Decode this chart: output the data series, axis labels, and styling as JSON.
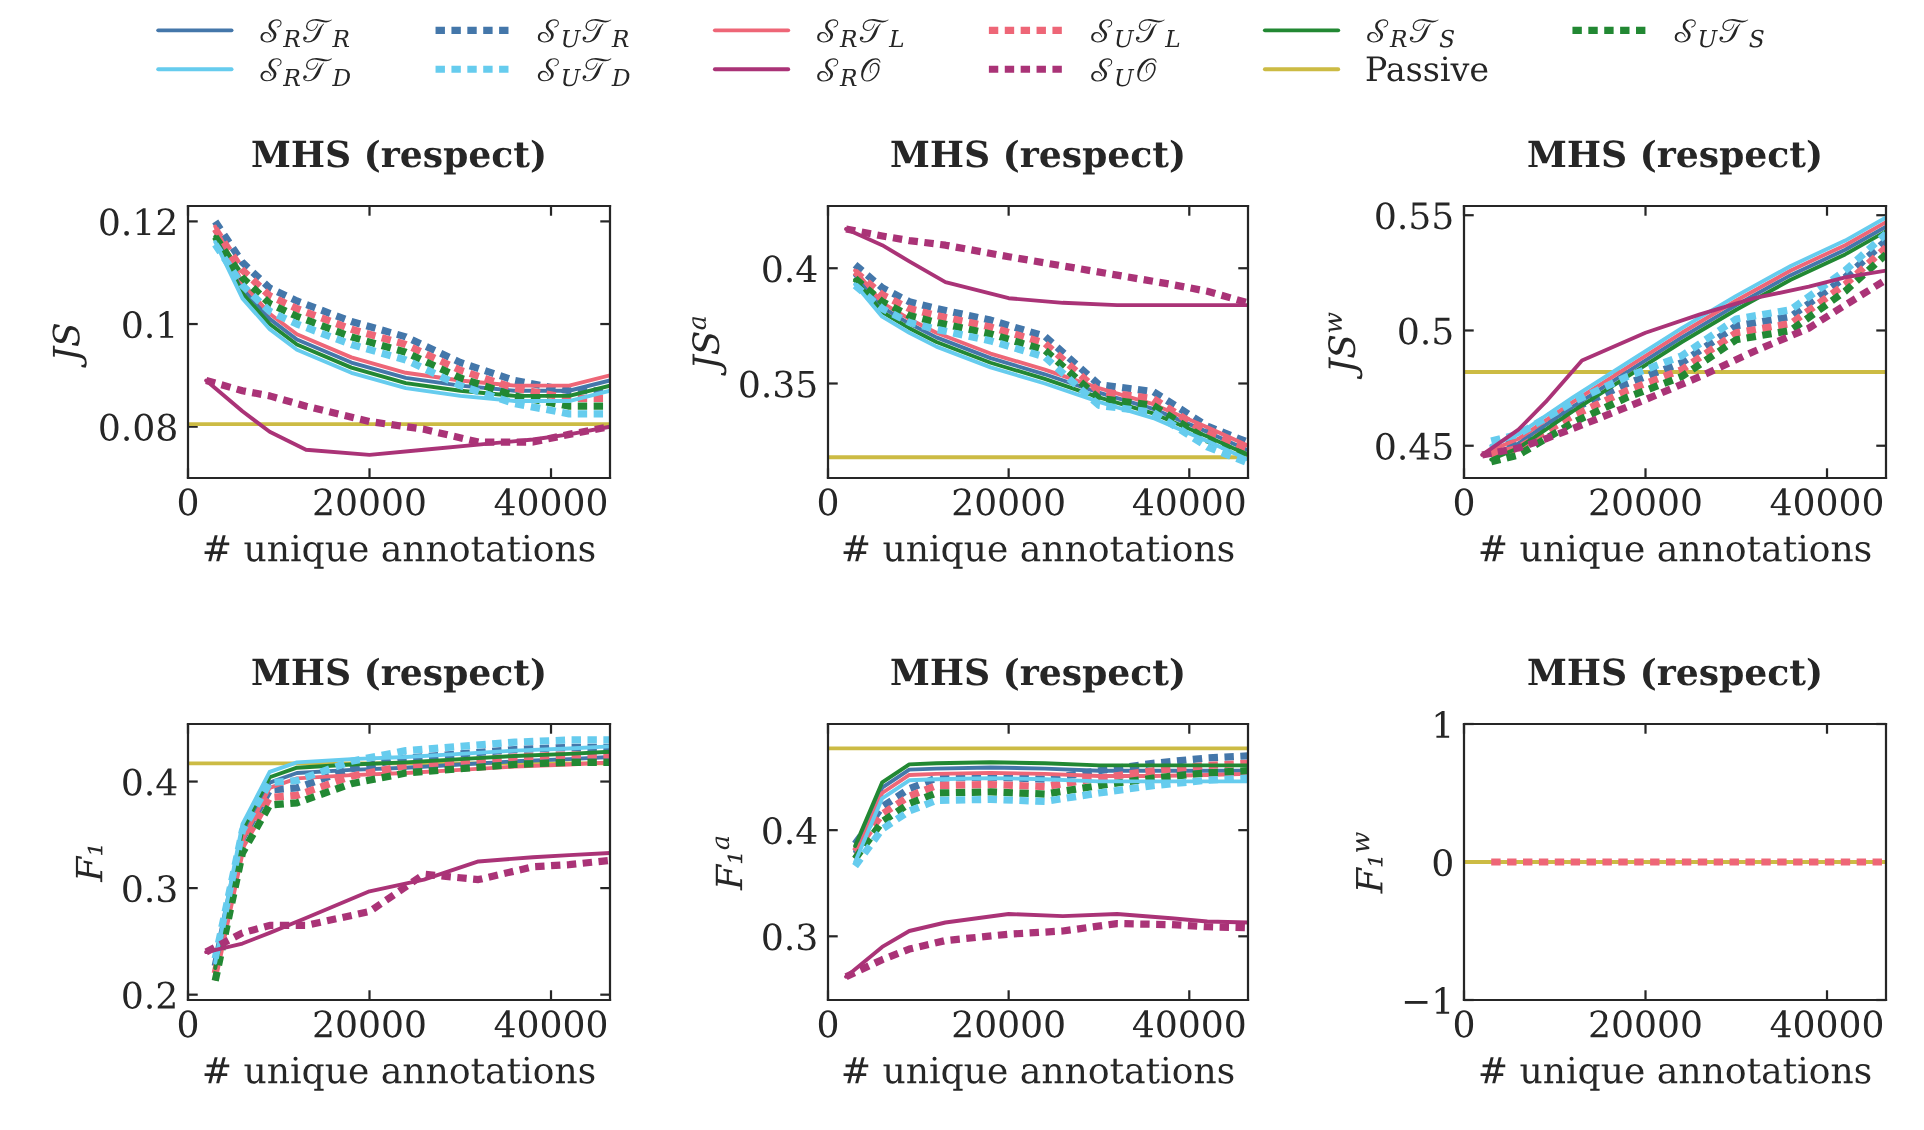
{
  "chart_data": [
    {
      "type": "line",
      "title": "MHS (respect)",
      "xlabel": "# unique annotations",
      "ylabel": "JS",
      "legend": "top",
      "xlim": [
        0,
        46500
      ],
      "xticks": [
        0,
        20000,
        40000
      ],
      "ylim": [
        0.07,
        0.123
      ],
      "yticks": [
        0.08,
        0.1,
        0.12
      ],
      "x": [
        3000,
        6000,
        9000,
        12000,
        18000,
        24000,
        30000,
        36000,
        42000,
        46500
      ],
      "series": [
        {
          "name": "𝒮$_{R}$𝒯$_{R}$",
          "color": "#4477aa",
          "values": [
            0.118,
            0.107,
            0.101,
            0.097,
            0.0925,
            0.0895,
            0.088,
            0.087,
            0.087,
            0.089
          ]
        },
        {
          "name": "𝒮$_{U}$𝒯$_{R}$",
          "color": "#4477aa",
          "line_style": "dashed",
          "values": [
            0.12,
            0.112,
            0.107,
            0.1045,
            0.1005,
            0.0975,
            0.0925,
            0.089,
            0.087,
            0.087
          ]
        },
        {
          "name": "𝒮$_{R}$𝒯$_{L}$",
          "color": "#ee6677",
          "values": [
            0.119,
            0.108,
            0.102,
            0.098,
            0.0935,
            0.0905,
            0.089,
            0.088,
            0.088,
            0.09
          ]
        },
        {
          "name": "𝒮$_{U}$𝒯$_{L}$",
          "color": "#ee6677",
          "line_style": "dashed",
          "values": [
            0.1185,
            0.1105,
            0.1055,
            0.103,
            0.099,
            0.096,
            0.091,
            0.0875,
            0.0855,
            0.0855
          ]
        },
        {
          "name": "𝒮$_{R}$𝒯$_{S}$",
          "color": "#228833",
          "values": [
            0.117,
            0.106,
            0.1,
            0.096,
            0.0915,
            0.0885,
            0.087,
            0.086,
            0.086,
            0.088
          ]
        },
        {
          "name": "𝒮$_{U}$𝒯$_{S}$",
          "color": "#228833",
          "line_style": "dashed",
          "values": [
            0.117,
            0.109,
            0.104,
            0.1015,
            0.0975,
            0.0945,
            0.0895,
            0.086,
            0.084,
            0.084
          ]
        },
        {
          "name": "𝒮$_{R}$𝒯$_{D}$",
          "color": "#66ccee",
          "values": [
            0.116,
            0.105,
            0.099,
            0.095,
            0.0905,
            0.0875,
            0.086,
            0.085,
            0.085,
            0.087
          ]
        },
        {
          "name": "𝒮$_{U}$𝒯$_{D}$",
          "color": "#66ccee",
          "line_style": "dashed",
          "values": [
            0.1155,
            0.1075,
            0.1025,
            0.1,
            0.096,
            0.093,
            0.088,
            0.0845,
            0.0825,
            0.0825
          ]
        },
        {
          "name": "𝒮$_{R}$𝒪",
          "color": "#aa3377",
          "x": [
            2000,
            6000,
            9000,
            13000,
            20000,
            26000,
            32000,
            38000,
            42000,
            46500
          ],
          "values": [
            0.089,
            0.083,
            0.079,
            0.0755,
            0.0745,
            0.0755,
            0.0765,
            0.0775,
            0.0785,
            0.08
          ]
        },
        {
          "name": "𝒮$_{U}$𝒪",
          "color": "#aa3377",
          "line_style": "dashed",
          "x": [
            2000,
            6000,
            9000,
            13000,
            20000,
            26000,
            32000,
            38000,
            42000,
            46500
          ],
          "values": [
            0.089,
            0.087,
            0.086,
            0.084,
            0.081,
            0.0795,
            0.077,
            0.077,
            0.0785,
            0.08
          ]
        }
      ],
      "ref_lines": [
        {
          "axis": "y",
          "value": 0.0805,
          "label": "Passive",
          "color": "#ccbb44"
        }
      ]
    },
    {
      "type": "line",
      "title": "MHS (respect)",
      "xlabel": "# unique annotations",
      "ylabel": "JS$^{a}$",
      "xlim": [
        0,
        46500
      ],
      "xticks": [
        0,
        20000,
        40000
      ],
      "ylim": [
        0.309,
        0.427
      ],
      "yticks": [
        0.35,
        0.4
      ],
      "x": [
        3000,
        6000,
        9000,
        12000,
        18000,
        24000,
        30000,
        36000,
        42000,
        46500
      ],
      "series": [
        {
          "color": "#4477aa",
          "values": [
            0.397,
            0.383,
            0.376,
            0.37,
            0.361,
            0.354,
            0.346,
            0.339,
            0.329,
            0.321
          ]
        },
        {
          "color": "#4477aa",
          "line_style": "dashed",
          "values": [
            0.4015,
            0.3915,
            0.3855,
            0.3825,
            0.3775,
            0.3705,
            0.3495,
            0.3465,
            0.3315,
            0.3245
          ]
        },
        {
          "color": "#ee6677",
          "values": [
            0.399,
            0.385,
            0.378,
            0.372,
            0.363,
            0.356,
            0.348,
            0.341,
            0.331,
            0.323
          ]
        },
        {
          "color": "#ee6677",
          "line_style": "dashed",
          "values": [
            0.3985,
            0.3885,
            0.3825,
            0.3795,
            0.3745,
            0.3675,
            0.3465,
            0.3435,
            0.3285,
            0.3215
          ]
        },
        {
          "color": "#228833",
          "values": [
            0.395,
            0.381,
            0.374,
            0.368,
            0.359,
            0.352,
            0.344,
            0.337,
            0.327,
            0.319
          ]
        },
        {
          "color": "#228833",
          "line_style": "dashed",
          "values": [
            0.3955,
            0.3855,
            0.3795,
            0.3765,
            0.3715,
            0.3645,
            0.3435,
            0.3405,
            0.3255,
            0.3185
          ]
        },
        {
          "color": "#66ccee",
          "values": [
            0.393,
            0.379,
            0.372,
            0.366,
            0.357,
            0.35,
            0.342,
            0.335,
            0.325,
            0.317
          ]
        },
        {
          "color": "#66ccee",
          "line_style": "dashed",
          "values": [
            0.3925,
            0.3825,
            0.3765,
            0.3735,
            0.3685,
            0.3615,
            0.3405,
            0.3375,
            0.3225,
            0.3155
          ]
        },
        {
          "color": "#aa3377",
          "x": [
            2000,
            6000,
            9000,
            13000,
            20000,
            26000,
            32000,
            38000,
            42000,
            46500
          ],
          "values": [
            0.417,
            0.41,
            0.403,
            0.394,
            0.387,
            0.385,
            0.384,
            0.384,
            0.384,
            0.384
          ]
        },
        {
          "color": "#aa3377",
          "line_style": "dashed",
          "x": [
            2000,
            6000,
            9000,
            13000,
            20000,
            26000,
            32000,
            38000,
            42000,
            46500
          ],
          "values": [
            0.417,
            0.414,
            0.412,
            0.41,
            0.405,
            0.401,
            0.397,
            0.393,
            0.39,
            0.385
          ]
        }
      ],
      "ref_lines": [
        {
          "axis": "y",
          "value": 0.318,
          "color": "#ccbb44"
        }
      ]
    },
    {
      "type": "line",
      "title": "MHS (respect)",
      "xlabel": "# unique annotations",
      "ylabel": "JS$^{w}$",
      "xlim": [
        0,
        46500
      ],
      "xticks": [
        0,
        20000,
        40000
      ],
      "ylim": [
        0.436,
        0.554
      ],
      "yticks": [
        0.45,
        0.5,
        0.55
      ],
      "x": [
        3000,
        6000,
        9000,
        12000,
        18000,
        24000,
        30000,
        36000,
        42000,
        46500
      ],
      "series": [
        {
          "color": "#4477aa",
          "values": [
            0.446,
            0.451,
            0.459,
            0.467,
            0.482,
            0.497,
            0.511,
            0.524,
            0.535,
            0.545
          ]
        },
        {
          "color": "#4477aa",
          "line_style": "dashed",
          "values": [
            0.449,
            0.452,
            0.459,
            0.466,
            0.477,
            0.486,
            0.502,
            0.506,
            0.523,
            0.539
          ]
        },
        {
          "color": "#ee6677",
          "values": [
            0.448,
            0.453,
            0.461,
            0.469,
            0.484,
            0.499,
            0.513,
            0.526,
            0.537,
            0.547
          ]
        },
        {
          "color": "#ee6677",
          "line_style": "dashed",
          "values": [
            0.446,
            0.449,
            0.456,
            0.463,
            0.474,
            0.483,
            0.499,
            0.503,
            0.52,
            0.536
          ]
        },
        {
          "color": "#228833",
          "values": [
            0.444,
            0.449,
            0.457,
            0.465,
            0.48,
            0.495,
            0.509,
            0.522,
            0.533,
            0.543
          ]
        },
        {
          "color": "#228833",
          "line_style": "dashed",
          "values": [
            0.443,
            0.446,
            0.453,
            0.46,
            0.471,
            0.48,
            0.496,
            0.5,
            0.517,
            0.533
          ]
        },
        {
          "color": "#66ccee",
          "values": [
            0.45,
            0.455,
            0.463,
            0.471,
            0.486,
            0.501,
            0.515,
            0.528,
            0.539,
            0.549
          ]
        },
        {
          "color": "#66ccee",
          "line_style": "dashed",
          "values": [
            0.452,
            0.455,
            0.462,
            0.469,
            0.48,
            0.489,
            0.505,
            0.509,
            0.526,
            0.542
          ]
        },
        {
          "color": "#aa3377",
          "x": [
            2000,
            6000,
            9000,
            13000,
            20000,
            26000,
            32000,
            38000,
            42000,
            46500
          ],
          "values": [
            0.446,
            0.457,
            0.469,
            0.487,
            0.499,
            0.507,
            0.514,
            0.519,
            0.523,
            0.526
          ]
        },
        {
          "color": "#aa3377",
          "line_style": "dashed",
          "x": [
            2000,
            6000,
            9000,
            13000,
            20000,
            26000,
            32000,
            38000,
            42000,
            46500
          ],
          "values": [
            0.446,
            0.449,
            0.453,
            0.459,
            0.47,
            0.48,
            0.491,
            0.501,
            0.511,
            0.522
          ]
        }
      ],
      "ref_lines": [
        {
          "axis": "y",
          "value": 0.482,
          "color": "#ccbb44"
        }
      ]
    },
    {
      "type": "line",
      "title": "MHS (respect)",
      "xlabel": "# unique annotations",
      "ylabel": "F₁",
      "xlim": [
        0,
        46500
      ],
      "xticks": [
        0,
        20000,
        40000
      ],
      "ylim": [
        0.195,
        0.454
      ],
      "yticks": [
        0.2,
        0.3,
        0.4
      ],
      "x": [
        3000,
        6000,
        9000,
        12000,
        18000,
        24000,
        30000,
        36000,
        42000,
        46500
      ],
      "series": [
        {
          "color": "#4477aa",
          "values": [
            0.22,
            0.35,
            0.399,
            0.408,
            0.411,
            0.413,
            0.416,
            0.419,
            0.421,
            0.423
          ]
        },
        {
          "color": "#4477aa",
          "line_style": "dashed",
          "values": [
            0.227,
            0.347,
            0.392,
            0.394,
            0.412,
            0.422,
            0.426,
            0.43,
            0.432,
            0.432
          ]
        },
        {
          "color": "#ee6677",
          "values": [
            0.215,
            0.345,
            0.394,
            0.403,
            0.406,
            0.408,
            0.411,
            0.414,
            0.416,
            0.418
          ]
        },
        {
          "color": "#ee6677",
          "line_style": "dashed",
          "values": [
            0.22,
            0.34,
            0.385,
            0.387,
            0.405,
            0.415,
            0.419,
            0.423,
            0.425,
            0.425
          ]
        },
        {
          "color": "#228833",
          "values": [
            0.225,
            0.355,
            0.404,
            0.413,
            0.416,
            0.418,
            0.421,
            0.424,
            0.426,
            0.428
          ]
        },
        {
          "color": "#228833",
          "line_style": "dashed",
          "values": [
            0.213,
            0.333,
            0.378,
            0.38,
            0.398,
            0.408,
            0.412,
            0.416,
            0.418,
            0.418
          ]
        },
        {
          "color": "#66ccee",
          "values": [
            0.23,
            0.36,
            0.409,
            0.418,
            0.421,
            0.423,
            0.426,
            0.429,
            0.431,
            0.433
          ]
        },
        {
          "color": "#66ccee",
          "line_style": "dashed",
          "values": [
            0.234,
            0.354,
            0.399,
            0.401,
            0.419,
            0.429,
            0.433,
            0.437,
            0.439,
            0.439
          ]
        },
        {
          "color": "#aa3377",
          "x": [
            2000,
            6000,
            9000,
            13000,
            20000,
            26000,
            32000,
            38000,
            42000,
            46500
          ],
          "values": [
            0.24,
            0.248,
            0.258,
            0.272,
            0.297,
            0.308,
            0.325,
            0.329,
            0.331,
            0.333
          ]
        },
        {
          "color": "#aa3377",
          "line_style": "dashed",
          "x": [
            2000,
            6000,
            9000,
            13000,
            20000,
            26000,
            32000,
            38000,
            42000,
            46500
          ],
          "values": [
            0.24,
            0.258,
            0.265,
            0.265,
            0.278,
            0.313,
            0.308,
            0.32,
            0.322,
            0.326
          ]
        }
      ],
      "ref_lines": [
        {
          "axis": "y",
          "value": 0.417,
          "color": "#ccbb44"
        }
      ]
    },
    {
      "type": "line",
      "title": "MHS (respect)",
      "xlabel": "# unique annotations",
      "ylabel": "F₁$^{a}$",
      "xlim": [
        0,
        46500
      ],
      "xticks": [
        0,
        20000,
        40000
      ],
      "ylim": [
        0.24,
        0.5
      ],
      "yticks": [
        0.3,
        0.4
      ],
      "x": [
        3000,
        6000,
        9000,
        12000,
        18000,
        24000,
        30000,
        36000,
        42000,
        46500
      ],
      "series": [
        {
          "color": "#4477aa",
          "values": [
            0.38,
            0.44,
            0.457,
            0.458,
            0.459,
            0.458,
            0.456,
            0.456,
            0.456,
            0.456
          ]
        },
        {
          "color": "#4477aa",
          "line_style": "dashed",
          "values": [
            0.387,
            0.422,
            0.439,
            0.449,
            0.45,
            0.448,
            0.456,
            0.463,
            0.468,
            0.47
          ]
        },
        {
          "color": "#ee6677",
          "values": [
            0.375,
            0.435,
            0.452,
            0.453,
            0.454,
            0.453,
            0.451,
            0.451,
            0.452,
            0.453
          ]
        },
        {
          "color": "#ee6677",
          "line_style": "dashed",
          "values": [
            0.38,
            0.415,
            0.432,
            0.442,
            0.443,
            0.441,
            0.449,
            0.456,
            0.461,
            0.463
          ]
        },
        {
          "color": "#228833",
          "values": [
            0.385,
            0.445,
            0.462,
            0.463,
            0.464,
            0.463,
            0.461,
            0.461,
            0.461,
            0.461
          ]
        },
        {
          "color": "#228833",
          "line_style": "dashed",
          "values": [
            0.373,
            0.408,
            0.425,
            0.435,
            0.436,
            0.434,
            0.442,
            0.449,
            0.454,
            0.456
          ]
        },
        {
          "color": "#66ccee",
          "values": [
            0.37,
            0.43,
            0.447,
            0.448,
            0.449,
            0.448,
            0.446,
            0.446,
            0.446,
            0.446
          ]
        },
        {
          "color": "#66ccee",
          "line_style": "dashed",
          "values": [
            0.366,
            0.401,
            0.418,
            0.428,
            0.429,
            0.427,
            0.435,
            0.442,
            0.447,
            0.449
          ]
        },
        {
          "color": "#aa3377",
          "x": [
            2000,
            6000,
            9000,
            13000,
            20000,
            26000,
            32000,
            38000,
            42000,
            46500
          ],
          "values": [
            0.262,
            0.29,
            0.305,
            0.313,
            0.321,
            0.319,
            0.321,
            0.317,
            0.314,
            0.313
          ]
        },
        {
          "color": "#aa3377",
          "line_style": "dashed",
          "x": [
            2000,
            6000,
            9000,
            13000,
            20000,
            26000,
            32000,
            38000,
            42000,
            46500
          ],
          "values": [
            0.262,
            0.278,
            0.288,
            0.296,
            0.302,
            0.305,
            0.312,
            0.311,
            0.309,
            0.308
          ]
        }
      ],
      "ref_lines": [
        {
          "axis": "y",
          "value": 0.477,
          "color": "#ccbb44"
        }
      ]
    },
    {
      "type": "line",
      "title": "MHS (respect)",
      "xlabel": "# unique annotations",
      "ylabel": "F₁$^{w}$",
      "xlim": [
        0,
        46500
      ],
      "xticks": [
        0,
        20000,
        40000
      ],
      "ylim": [
        -1,
        1
      ],
      "yticks": [
        {
          "value": -1,
          "label": "−1"
        },
        0,
        1
      ],
      "x": [
        3000,
        6000,
        9000,
        12000,
        18000,
        24000,
        30000,
        36000,
        42000,
        46500
      ],
      "series": [
        {
          "color": "#4477aa",
          "values": [
            null,
            null,
            null,
            null,
            null,
            null,
            null,
            null,
            null,
            null
          ]
        },
        {
          "color": "#4477aa",
          "line_style": "dashed",
          "values": [
            null,
            null,
            null,
            null,
            null,
            null,
            null,
            null,
            null,
            null
          ]
        },
        {
          "color": "#ee6677",
          "values": [
            null,
            null,
            null,
            null,
            null,
            null,
            null,
            null,
            null,
            null
          ]
        },
        {
          "color": "#ee6677",
          "line_style": "dashed",
          "values": [
            0,
            0,
            0,
            0,
            0,
            0,
            0,
            0,
            0,
            0
          ]
        },
        {
          "color": "#228833",
          "values": [
            null,
            null,
            null,
            null,
            null,
            null,
            null,
            null,
            null,
            null
          ]
        },
        {
          "color": "#228833",
          "line_style": "dashed",
          "values": [
            null,
            null,
            null,
            null,
            null,
            null,
            null,
            null,
            null,
            null
          ]
        },
        {
          "color": "#66ccee",
          "values": [
            null,
            null,
            null,
            null,
            null,
            null,
            null,
            null,
            null,
            null
          ]
        },
        {
          "color": "#66ccee",
          "line_style": "dashed",
          "values": [
            null,
            null,
            null,
            null,
            null,
            null,
            null,
            null,
            null,
            null
          ]
        },
        {
          "color": "#aa3377",
          "values": [
            null,
            null,
            null,
            null,
            null,
            null,
            null,
            null,
            null,
            null
          ]
        },
        {
          "color": "#aa3377",
          "line_style": "dashed",
          "values": [
            null,
            null,
            null,
            null,
            null,
            null,
            null,
            null,
            null,
            null
          ]
        }
      ],
      "ref_lines": [
        {
          "axis": "y",
          "value": 0,
          "color": "#ccbb44"
        }
      ]
    }
  ]
}
